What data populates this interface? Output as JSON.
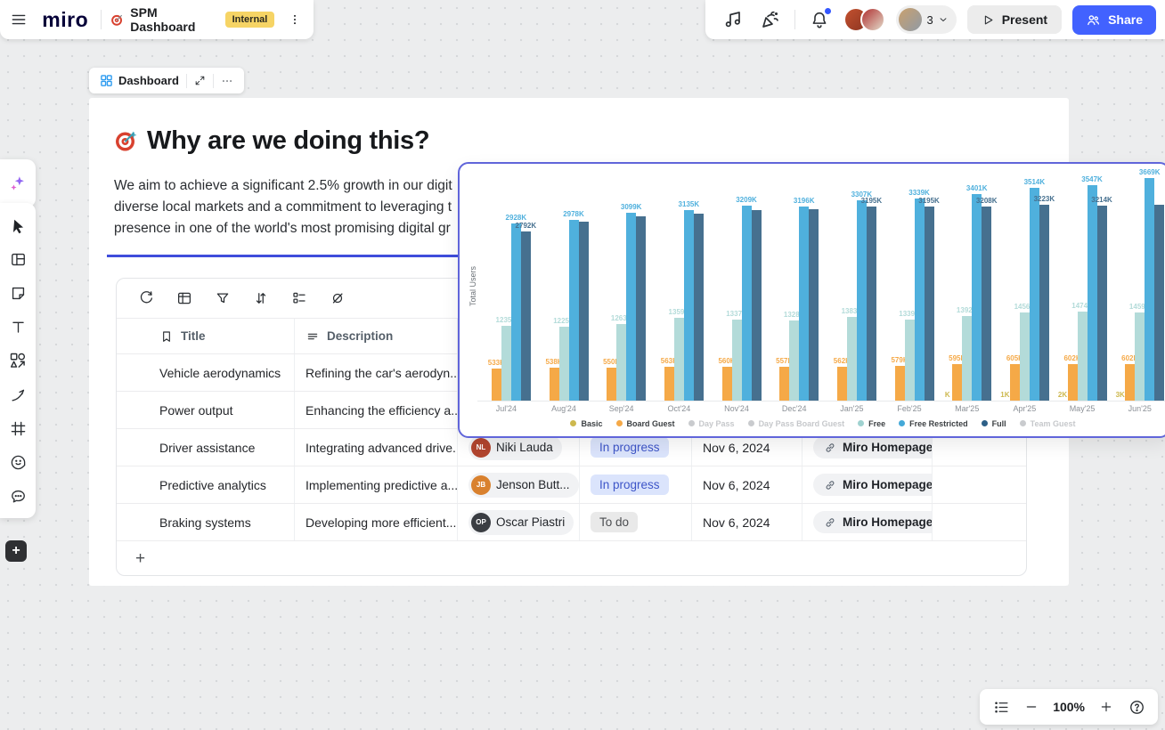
{
  "topbar": {
    "logo": "miro",
    "board_title": "SPM Dashboard",
    "badge": "Internal",
    "collab_count": "3",
    "present_label": "Present",
    "share_label": "Share"
  },
  "frame": {
    "label": "Dashboard"
  },
  "content": {
    "heading": "Why are we doing this?",
    "paragraph_lines": [
      "We aim to achieve a significant 2.5% growth in our digit",
      "diverse local markets and a commitment to leveraging t",
      "presence in one of the world's most promising digital gr"
    ]
  },
  "table": {
    "headers": {
      "title": "Title",
      "description": "Description"
    },
    "add_row_label": "+",
    "rows": [
      {
        "title": "Vehicle aerodynamics",
        "description": "Refining the car's aerodyn...",
        "assignee": "",
        "initials": "",
        "avatar_color": "",
        "status": "",
        "status_type": "",
        "date": "",
        "link": ""
      },
      {
        "title": "Power output",
        "description": "Enhancing the efficiency a...",
        "assignee": "",
        "initials": "",
        "avatar_color": "",
        "status": "",
        "status_type": "",
        "date": "",
        "link": ""
      },
      {
        "title": "Driver assistance",
        "description": "Integrating advanced drive...",
        "assignee": "Niki Lauda",
        "initials": "NL",
        "avatar_color": "#b2452f",
        "status": "In progress",
        "status_type": "inprogress",
        "date": "Nov 6, 2024",
        "link": "Miro Homepage"
      },
      {
        "title": "Predictive analytics",
        "description": "Implementing predictive a...",
        "assignee": "Jenson Butt...",
        "initials": "JB",
        "avatar_color": "#d9812e",
        "status": "In progress",
        "status_type": "inprogress",
        "date": "Nov 6, 2024",
        "link": "Miro Homepage"
      },
      {
        "title": "Braking systems",
        "description": "Developing more efficient...",
        "assignee": "Oscar Piastri",
        "initials": "OP",
        "avatar_color": "#3a3d42",
        "status": "To do",
        "status_type": "todo",
        "date": "Nov 6, 2024",
        "link": "Miro Homepage"
      }
    ]
  },
  "chart_data": {
    "type": "bar",
    "title": "",
    "xlabel": "",
    "ylabel": "Total Users",
    "unit": "K",
    "ylim": [
      0,
      3700
    ],
    "grid": false,
    "legend_position": "bottom",
    "categories": [
      "Jul'24",
      "Aug'24",
      "Sep'24",
      "Oct'24",
      "Nov'24",
      "Dec'24",
      "Jan'25",
      "Feb'25",
      "Mar'25",
      "Apr'25",
      "May'25",
      "Jun'25"
    ],
    "series": [
      {
        "name": "Basic",
        "color": "#cdb84e",
        "values": [
          0,
          0,
          0,
          0,
          0,
          0,
          0,
          0,
          0,
          1,
          2,
          3
        ],
        "labels": [
          "",
          "",
          "",
          "",
          "",
          "",
          "",
          "",
          "K",
          "1K",
          "2K",
          "3K"
        ]
      },
      {
        "name": "Board Guest",
        "color": "#f5a947",
        "values": [
          533,
          538,
          550,
          563,
          560,
          557,
          562,
          579,
          595,
          605,
          602,
          602
        ],
        "labels": [
          "533K",
          "538K",
          "550K",
          "563K",
          "560K",
          "557K",
          "562K",
          "579K",
          "595K",
          "605K",
          "602K",
          "602K"
        ]
      },
      {
        "name": "Free",
        "color": "#b3dbd9",
        "values": [
          1235,
          1225,
          1263,
          1359,
          1337,
          1328,
          1383,
          1339,
          1392,
          1456,
          1474,
          1459
        ],
        "labels": [
          "1235K",
          "1225K",
          "1263K",
          "1359K",
          "1337K",
          "1328K",
          "1383K",
          "1339K",
          "1392K",
          "1456K",
          "1474K",
          "1459K"
        ]
      },
      {
        "name": "Free Restricted",
        "color": "#4fb0dd",
        "values": [
          2928,
          2978,
          3099,
          3135,
          3209,
          3196,
          3307,
          3339,
          3401,
          3514,
          3547,
          3669
        ],
        "labels": [
          "2928K",
          "2978K",
          "3099K",
          "3135K",
          "3209K",
          "3196K",
          "3307K",
          "3339K",
          "3401K",
          "3514K",
          "3547K",
          "3669K"
        ]
      },
      {
        "name": "Full",
        "color": "#46708f",
        "values": [
          2792,
          2950,
          3040,
          3090,
          3140,
          3150,
          3195,
          3195,
          3208,
          3223,
          3214,
          3230
        ],
        "labels": [
          "2792K",
          "",
          "",
          "",
          "",
          "",
          "3195K",
          "3195K",
          "3208K",
          "3223K",
          "3214K",
          ""
        ]
      }
    ],
    "legend": [
      {
        "label": "Basic",
        "color": "#cdb84e",
        "active": true
      },
      {
        "label": "Board Guest",
        "color": "#f5a947",
        "active": true
      },
      {
        "label": "Day Pass",
        "color": "#c9cbce",
        "active": false
      },
      {
        "label": "Day Pass Board Guest",
        "color": "#c9cbce",
        "active": false
      },
      {
        "label": "Free",
        "color": "#9fd2d0",
        "active": true
      },
      {
        "label": "Free Restricted",
        "color": "#44a9d8",
        "active": true
      },
      {
        "label": "Full",
        "color": "#2d5f87",
        "active": true
      },
      {
        "label": "Team Guest",
        "color": "#c9cbce",
        "active": false
      }
    ]
  },
  "zoombar": {
    "zoom_level": "100%"
  }
}
